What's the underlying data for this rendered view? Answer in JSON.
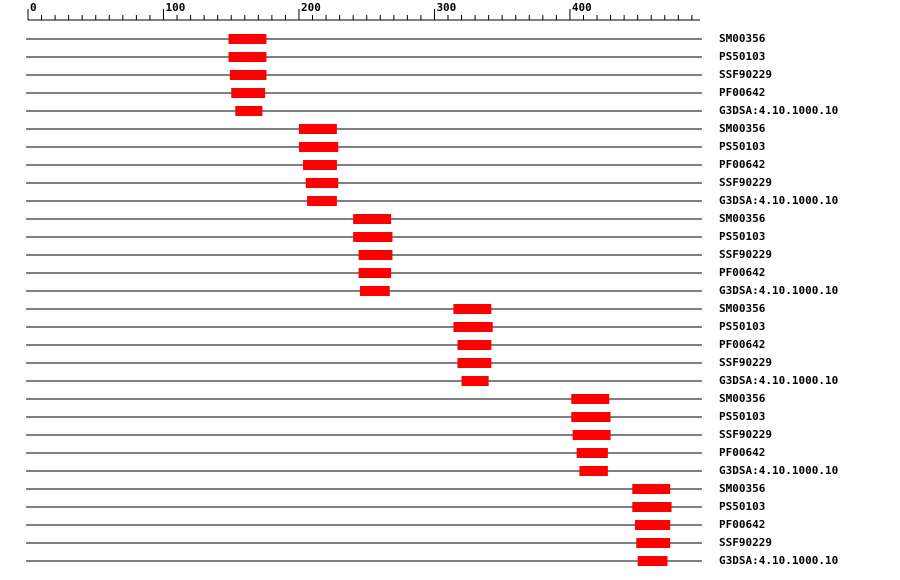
{
  "chart_data": {
    "type": "range",
    "color": "#ff0000",
    "xlim": [
      0,
      496
    ],
    "xticks": [
      0,
      100,
      200,
      300,
      400
    ],
    "rows": [
      {
        "label": "SM00356",
        "start": 148,
        "end": 176
      },
      {
        "label": "PS50103",
        "start": 148,
        "end": 176
      },
      {
        "label": "SSF90229",
        "start": 149,
        "end": 176
      },
      {
        "label": "PF00642",
        "start": 150,
        "end": 175
      },
      {
        "label": "G3DSA:4.10.1000.10",
        "start": 153,
        "end": 173
      },
      {
        "label": "SM00356",
        "start": 200,
        "end": 228
      },
      {
        "label": "PS50103",
        "start": 200,
        "end": 229
      },
      {
        "label": "PF00642",
        "start": 203,
        "end": 228
      },
      {
        "label": "SSF90229",
        "start": 205,
        "end": 229
      },
      {
        "label": "G3DSA:4.10.1000.10",
        "start": 206,
        "end": 228
      },
      {
        "label": "SM00356",
        "start": 240,
        "end": 268
      },
      {
        "label": "PS50103",
        "start": 240,
        "end": 269
      },
      {
        "label": "SSF90229",
        "start": 244,
        "end": 269
      },
      {
        "label": "PF00642",
        "start": 244,
        "end": 268
      },
      {
        "label": "G3DSA:4.10.1000.10",
        "start": 245,
        "end": 267
      },
      {
        "label": "SM00356",
        "start": 314,
        "end": 342
      },
      {
        "label": "PS50103",
        "start": 314,
        "end": 343
      },
      {
        "label": "PF00642",
        "start": 317,
        "end": 342
      },
      {
        "label": "SSF90229",
        "start": 317,
        "end": 342
      },
      {
        "label": "G3DSA:4.10.1000.10",
        "start": 320,
        "end": 340
      },
      {
        "label": "SM00356",
        "start": 401,
        "end": 429
      },
      {
        "label": "PS50103",
        "start": 401,
        "end": 430
      },
      {
        "label": "SSF90229",
        "start": 402,
        "end": 430
      },
      {
        "label": "PF00642",
        "start": 405,
        "end": 428
      },
      {
        "label": "G3DSA:4.10.1000.10",
        "start": 407,
        "end": 428
      },
      {
        "label": "SM00356",
        "start": 446,
        "end": 474
      },
      {
        "label": "PS50103",
        "start": 446,
        "end": 475
      },
      {
        "label": "PF00642",
        "start": 448,
        "end": 474
      },
      {
        "label": "SSF90229",
        "start": 449,
        "end": 474
      },
      {
        "label": "G3DSA:4.10.1000.10",
        "start": 450,
        "end": 472
      }
    ]
  }
}
